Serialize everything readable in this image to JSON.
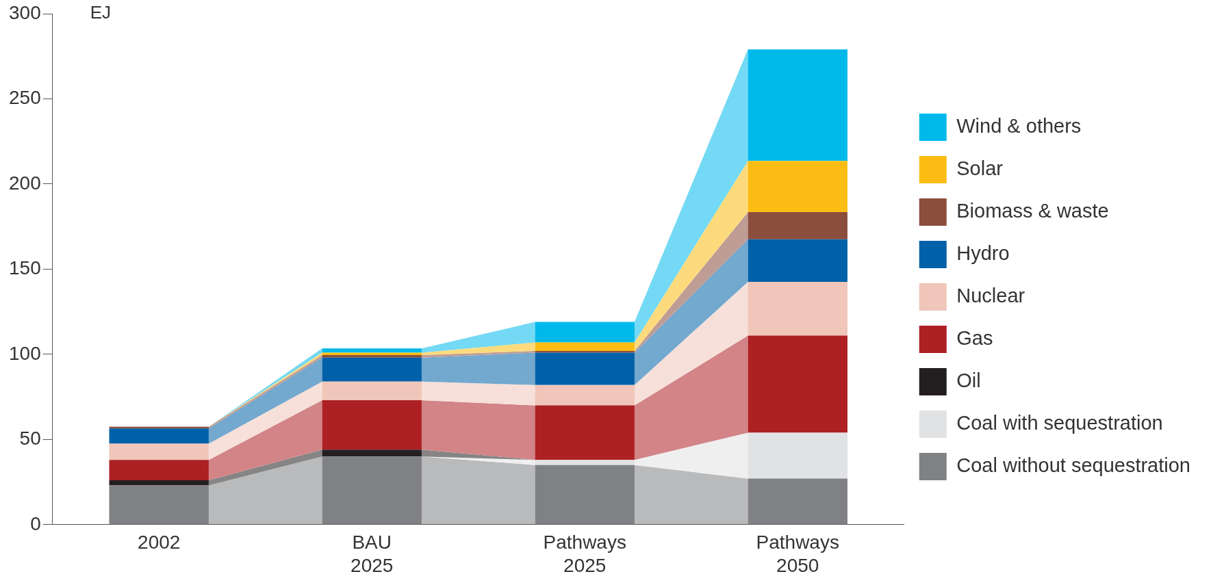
{
  "chart_data": {
    "type": "bar",
    "stacked": true,
    "ylabel": "EJ",
    "categories": [
      "2002",
      "BAU 2025",
      "Pathways 2025",
      "Pathways 2050"
    ],
    "ylim": [
      0,
      300
    ],
    "yticks": [
      0,
      50,
      100,
      150,
      200,
      250,
      300
    ],
    "grid": false,
    "legend": "right",
    "series": [
      {
        "name": "Coal without sequestration",
        "color": "#808184",
        "values": [
          23,
          40,
          35,
          27
        ]
      },
      {
        "name": "Coal with sequestration",
        "color": "#e1e2e3",
        "values": [
          0,
          0,
          3,
          27
        ]
      },
      {
        "name": "Oil",
        "color": "#231f20",
        "values": [
          3,
          4,
          0,
          0
        ]
      },
      {
        "name": "Gas",
        "color": "#ad2024",
        "values": [
          12,
          29,
          32,
          57
        ]
      },
      {
        "name": "Nuclear",
        "color": "#efc6b9",
        "values": [
          9.5,
          11,
          12,
          31.5
        ]
      },
      {
        "name": "Hydro",
        "color": "#0060a8",
        "values": [
          9,
          14,
          19,
          25
        ]
      },
      {
        "name": "Biomass & waste",
        "color": "#8b4d3c",
        "values": [
          1,
          1.5,
          1,
          16
        ]
      },
      {
        "name": "Solar",
        "color": "#fbbd13",
        "values": [
          0,
          1.5,
          5,
          30
        ]
      },
      {
        "name": "Wind & others",
        "color": "#00b9eb",
        "values": [
          0,
          2.5,
          12,
          65.5
        ]
      }
    ]
  }
}
